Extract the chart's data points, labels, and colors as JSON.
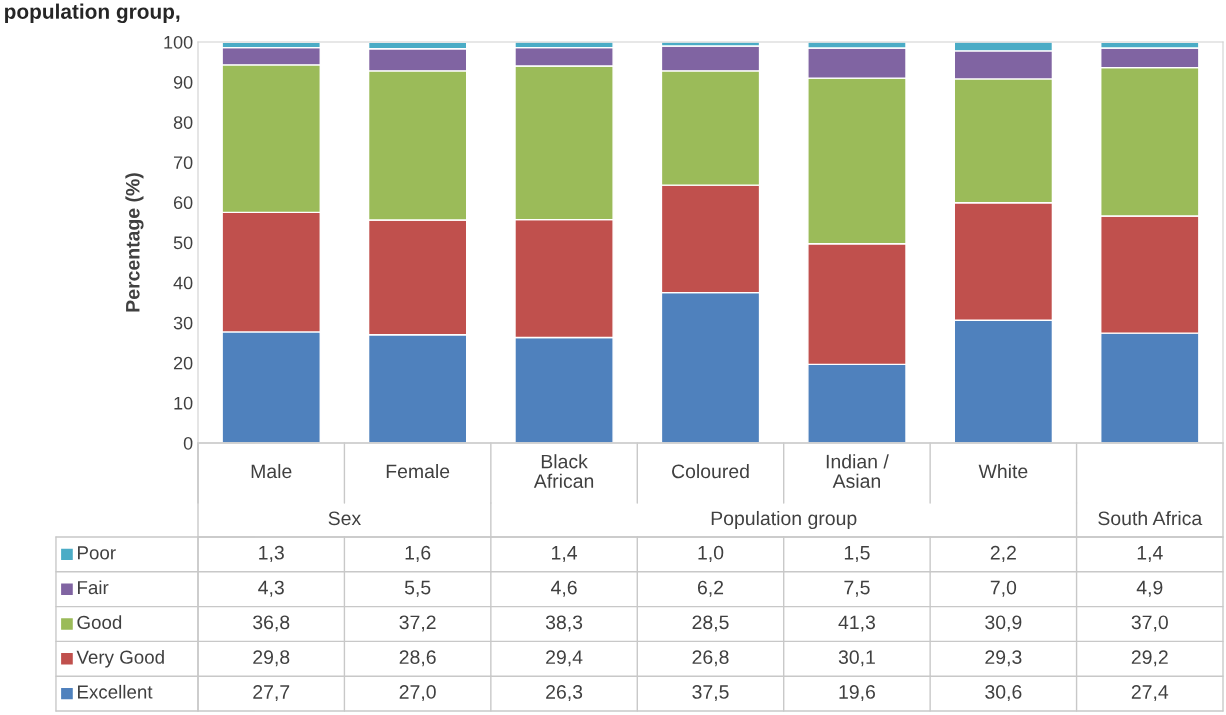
{
  "chart_data": {
    "type": "bar",
    "stacked": true,
    "title": "population group,",
    "ylabel": "Percentage (%)",
    "categories": [
      "Male",
      "Female",
      "Black\nAfrican",
      "Coloured",
      "Indian /\nAsian",
      "White",
      null
    ],
    "annotations": [
      "Sex",
      "Population group",
      "South Africa"
    ],
    "ylim": [
      0,
      100
    ],
    "yticks": [
      0,
      10,
      20,
      30,
      40,
      50,
      60,
      70,
      80,
      90,
      100
    ],
    "grid": false,
    "legend": "bottom left",
    "series": [
      {
        "name": "Excellent",
        "color": "#4f81bd",
        "values": [
          27.7,
          27.0,
          26.3,
          37.5,
          19.6,
          30.6,
          27.4
        ],
        "value_labels": [
          "27,7",
          "27,0",
          "26,3",
          "37,5",
          "19,6",
          "30,6",
          "27,4"
        ]
      },
      {
        "name": "Very Good",
        "color": "#c0504d",
        "values": [
          29.8,
          28.6,
          29.4,
          26.8,
          30.1,
          29.3,
          29.2
        ],
        "value_labels": [
          "29,8",
          "28,6",
          "29,4",
          "26,8",
          "30,1",
          "29,3",
          "29,2"
        ]
      },
      {
        "name": "Good",
        "color": "#9bbb59",
        "values": [
          36.8,
          37.2,
          38.3,
          28.5,
          41.3,
          30.9,
          37.0
        ],
        "value_labels": [
          "36,8",
          "37,2",
          "38,3",
          "28,5",
          "41,3",
          "30,9",
          "37,0"
        ]
      },
      {
        "name": "Fair",
        "color": "#8064a2",
        "values": [
          4.3,
          5.5,
          4.6,
          6.2,
          7.5,
          7.0,
          4.9
        ],
        "value_labels": [
          "4,3",
          "5,5",
          "4,6",
          "6,2",
          "7,5",
          "7,0",
          "4,9"
        ]
      },
      {
        "name": "Poor",
        "color": "#4bacc6",
        "values": [
          1.3,
          1.6,
          1.4,
          1.0,
          1.5,
          2.2,
          1.4
        ],
        "value_labels": [
          "1,3",
          "1,6",
          "1,4",
          "1,0",
          "1,5",
          "2,2",
          "1,4"
        ]
      }
    ]
  }
}
